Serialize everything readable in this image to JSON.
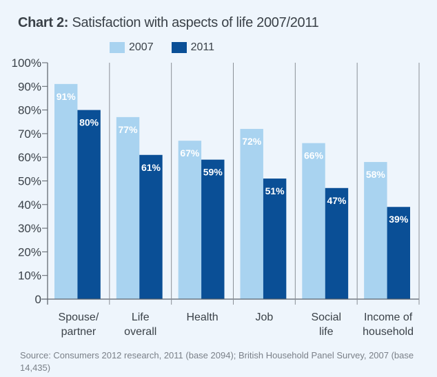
{
  "title_prefix": "Chart 2:",
  "title_text": "Satisfaction with aspects of life 2007/2011",
  "source": "Source: Consumers 2012 research, 2011 (base 2094); British Household Panel Survey, 2007 (base 14,435)",
  "colors": {
    "background": "#eef5fc",
    "series_2007": "#a9d3f0",
    "series_2011": "#0a4f96",
    "axis": "#5a6068",
    "text": "#3a4148"
  },
  "chart_data": {
    "type": "bar",
    "title": "Chart 2: Satisfaction with aspects of life 2007/2011",
    "xlabel": "",
    "ylabel": "",
    "ylim": [
      0,
      100
    ],
    "yticks": [
      0,
      10,
      20,
      30,
      40,
      50,
      60,
      70,
      80,
      90,
      100
    ],
    "ytick_labels": [
      "0",
      "10%",
      "20%",
      "30%",
      "40%",
      "50%",
      "60%",
      "70%",
      "80%",
      "90%",
      "100%"
    ],
    "categories": [
      [
        "Spouse/",
        "partner"
      ],
      [
        "Life",
        "overall"
      ],
      [
        "Health"
      ],
      [
        "Job"
      ],
      [
        "Social",
        "life"
      ],
      [
        "Income of",
        "household"
      ]
    ],
    "series": [
      {
        "name": "2007",
        "values": [
          91,
          77,
          67,
          72,
          66,
          58
        ],
        "labels": [
          "91%",
          "77%",
          "67%",
          "72%",
          "66%",
          "58%"
        ]
      },
      {
        "name": "2011",
        "values": [
          80,
          61,
          59,
          51,
          47,
          39
        ],
        "labels": [
          "80%",
          "61%",
          "59%",
          "51%",
          "47%",
          "39%"
        ]
      }
    ],
    "legend": {
      "position": "top",
      "entries": [
        "2007",
        "2011"
      ]
    },
    "grid": false,
    "data_labels": "inside-top"
  }
}
